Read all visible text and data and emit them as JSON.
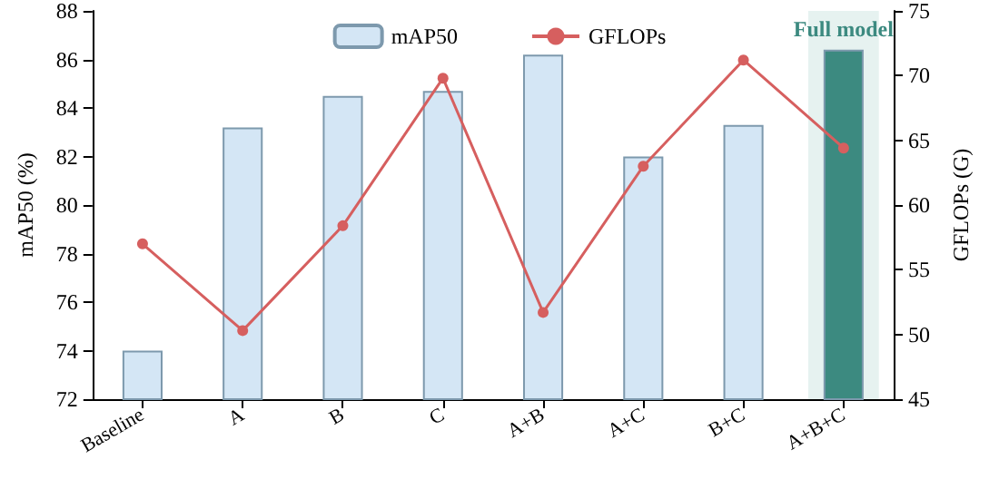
{
  "chart_data": {
    "type": "bar",
    "categories": [
      "Baseline",
      "A",
      "B",
      "C",
      "A+B",
      "A+C",
      "B+C",
      "A+B+C"
    ],
    "ylabel": "mAP50 (%)",
    "y2label": "GFLOPs (G)",
    "series": [
      {
        "name": "mAP50",
        "color": "#d4e6f5",
        "colors": [
          "#d4e6f5",
          "#d4e6f5",
          "#d4e6f5",
          "#d4e6f5",
          "#d4e6f5",
          "#d4e6f5",
          "#d4e6f5",
          "#3c8a80"
        ],
        "values": [
          74.0,
          83.2,
          84.5,
          84.7,
          86.2,
          82.0,
          83.3,
          86.4
        ]
      },
      {
        "name": "GFLOPs",
        "type": "line",
        "axis": "y2",
        "color": "#d65f5f",
        "values": [
          57.0,
          50.3,
          58.4,
          69.8,
          51.7,
          63.0,
          71.2,
          64.4
        ]
      }
    ],
    "ylim": [
      72,
      88
    ],
    "yticks": [
      72,
      74,
      76,
      78,
      80,
      82,
      84,
      86,
      88
    ],
    "y2lim": [
      45,
      75
    ],
    "y2ticks": [
      45,
      50,
      55,
      60,
      65,
      70,
      75
    ],
    "bands": [
      {
        "axis": "x",
        "from": "A+B+C",
        "to": "A+B+C",
        "label": "Full model",
        "color": "#e6f2f0"
      }
    ],
    "legend": "top",
    "marker": "circle",
    "line_style": "solid",
    "grid": false
  }
}
